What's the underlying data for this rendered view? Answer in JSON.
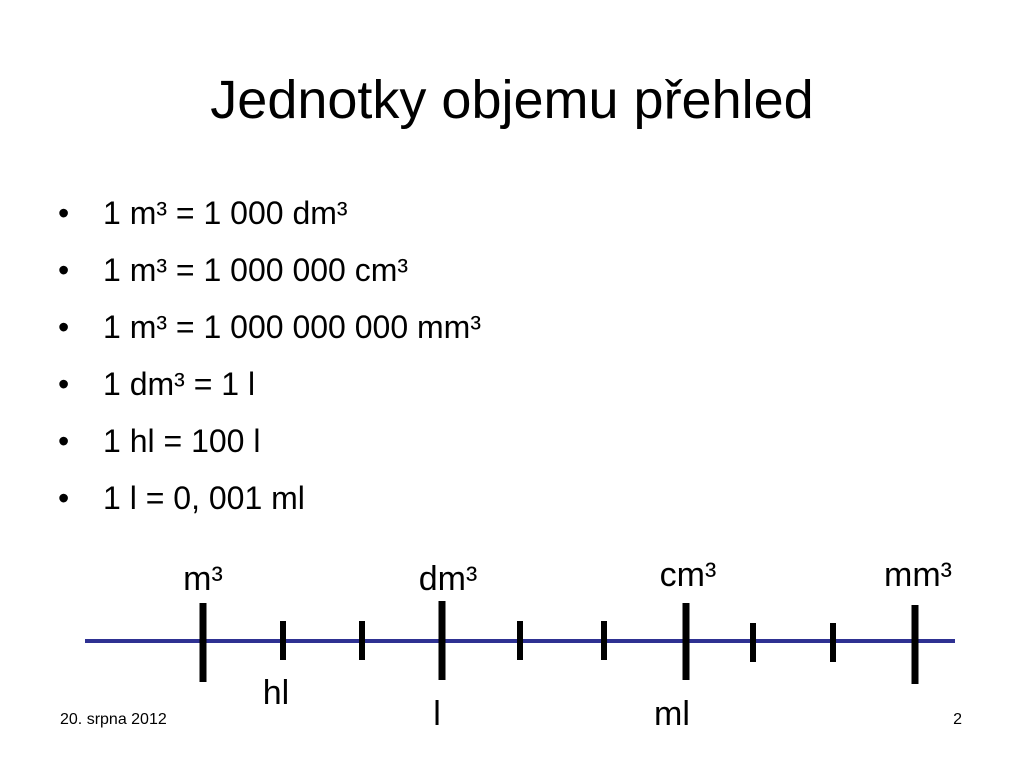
{
  "title": "Jednotky objemu přehled",
  "bullets": [
    "1 m³ = 1 000 dm³",
    "1 m³ = 1 000 000 cm³",
    "1 m³ = 1 000 000 000 mm³",
    "1 dm³ = 1 l",
    "1 hl = 100 l",
    "1 l = 0, 001 ml"
  ],
  "scale": {
    "top_labels": [
      "m³",
      "dm³",
      "cm³",
      "mm³"
    ],
    "bottom_labels": [
      "hl",
      "l",
      "ml"
    ]
  },
  "footer": {
    "date": "20. srpna 2012",
    "page": "2"
  }
}
